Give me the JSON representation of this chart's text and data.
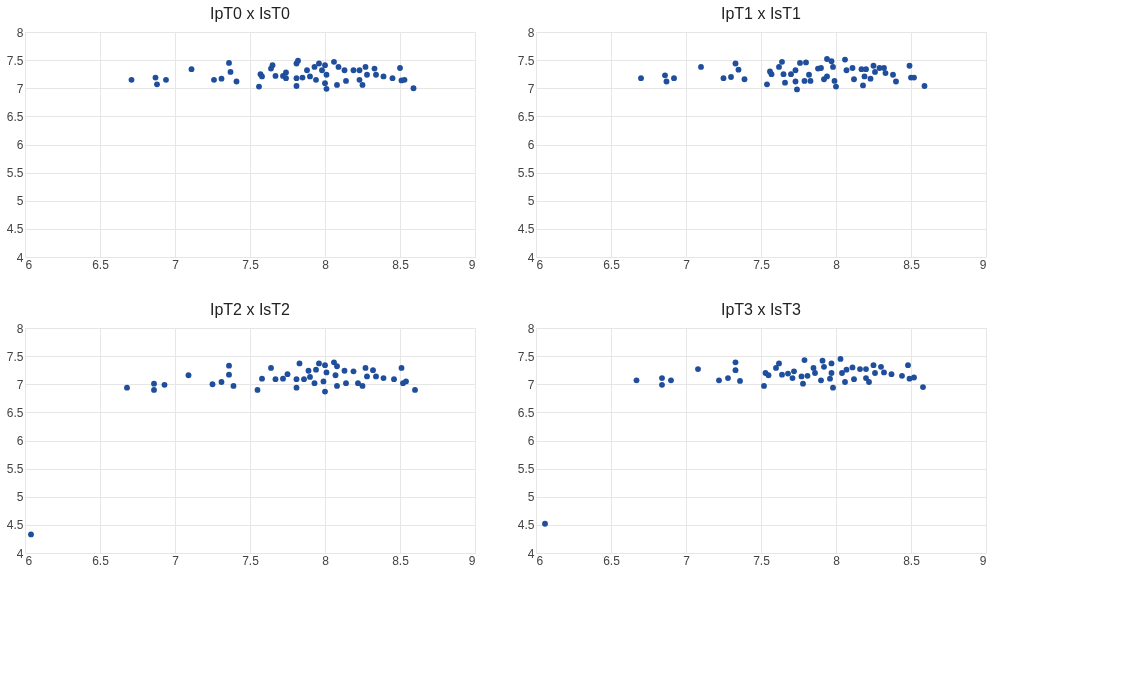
{
  "chart_data": [
    {
      "type": "scatter",
      "title": "IpT0 x IsT0",
      "xlim": [
        6,
        9
      ],
      "ylim": [
        4,
        8
      ],
      "xticks": [
        6,
        6.5,
        7,
        7.5,
        8,
        8.5,
        9
      ],
      "yticks": [
        4,
        4.5,
        5,
        5.5,
        6,
        6.5,
        7,
        7.5,
        8
      ],
      "grid": true,
      "marker": "circle",
      "series": [
        {
          "color": "#1f4e9c",
          "x": [
            6.71,
            6.87,
            6.88,
            6.94,
            7.11,
            7.26,
            7.31,
            7.36,
            7.37,
            7.41,
            7.56,
            7.57,
            7.58,
            7.64,
            7.65,
            7.67,
            7.72,
            7.74,
            7.74,
            7.81,
            7.82,
            7.81,
            7.85,
            7.81,
            7.88,
            7.9,
            7.93,
            7.96,
            7.94,
            7.98,
            8.0,
            8.01,
            8.01,
            8.0,
            8.06,
            8.09,
            8.08,
            8.13,
            8.14,
            8.19,
            8.23,
            8.23,
            8.25,
            8.27,
            8.28,
            8.33,
            8.34,
            8.39,
            8.45,
            8.5,
            8.51,
            8.53,
            8.59
          ],
          "values": [
            7.15,
            7.19,
            7.07,
            7.15,
            7.34,
            7.15,
            7.17,
            7.45,
            7.29,
            7.12,
            7.03,
            7.25,
            7.21,
            7.35,
            7.41,
            7.22,
            7.22,
            7.28,
            7.18,
            7.44,
            7.49,
            7.18,
            7.19,
            7.04,
            7.32,
            7.21,
            7.38,
            7.44,
            7.15,
            7.32,
            7.41,
            7.24,
            6.99,
            7.09,
            7.47,
            7.38,
            7.06,
            7.32,
            7.13,
            7.32,
            7.32,
            7.15,
            7.06,
            7.38,
            7.24,
            7.35,
            7.24,
            7.21,
            7.18,
            7.36,
            7.14,
            7.15,
            7.0
          ]
        }
      ]
    },
    {
      "type": "scatter",
      "title": "IpT1 x IsT1",
      "xlim": [
        6,
        9
      ],
      "ylim": [
        4,
        8
      ],
      "xticks": [
        6,
        6.5,
        7,
        7.5,
        8,
        8.5,
        9
      ],
      "yticks": [
        4,
        4.5,
        5,
        5.5,
        6,
        6.5,
        7,
        7.5,
        8
      ],
      "grid": true,
      "marker": "circle",
      "series": [
        {
          "color": "#1f4e9c",
          "x": [
            6.7,
            6.86,
            6.87,
            6.92,
            7.1,
            7.25,
            7.3,
            7.33,
            7.35,
            7.39,
            7.54,
            7.56,
            7.57,
            7.62,
            7.64,
            7.65,
            7.66,
            7.7,
            7.73,
            7.73,
            7.74,
            7.76,
            7.8,
            7.79,
            7.82,
            7.83,
            7.88,
            7.9,
            7.94,
            7.94,
            7.92,
            7.97,
            7.98,
            8.0,
            7.99,
            8.06,
            8.07,
            8.11,
            8.12,
            8.17,
            8.19,
            8.18,
            8.2,
            8.23,
            8.25,
            8.26,
            8.29,
            8.32,
            8.33,
            8.38,
            8.4,
            8.49,
            8.5,
            8.52,
            8.59
          ],
          "values": [
            7.18,
            7.23,
            7.12,
            7.18,
            7.38,
            7.18,
            7.2,
            7.44,
            7.33,
            7.16,
            7.07,
            7.3,
            7.25,
            7.38,
            7.47,
            7.25,
            7.1,
            7.25,
            7.32,
            7.12,
            6.98,
            7.45,
            7.46,
            7.13,
            7.24,
            7.13,
            7.35,
            7.36,
            7.52,
            7.21,
            7.16,
            7.48,
            7.38,
            7.03,
            7.13,
            7.51,
            7.32,
            7.36,
            7.16,
            7.34,
            7.21,
            7.05,
            7.34,
            7.17,
            7.4,
            7.29,
            7.36,
            7.36,
            7.27,
            7.24,
            7.12,
            7.4,
            7.19,
            7.19,
            7.04
          ]
        }
      ]
    },
    {
      "type": "scatter",
      "title": "IpT2 x IsT2",
      "xlim": [
        6,
        9
      ],
      "ylim": [
        4,
        8
      ],
      "xticks": [
        6,
        6.5,
        7,
        7.5,
        8,
        8.5,
        9
      ],
      "yticks": [
        4,
        4.5,
        5,
        5.5,
        6,
        6.5,
        7,
        7.5,
        8
      ],
      "grid": true,
      "marker": "circle",
      "series": [
        {
          "color": "#1f4e9c",
          "x": [
            6.04,
            6.68,
            6.86,
            6.86,
            6.93,
            7.09,
            7.25,
            7.31,
            7.36,
            7.36,
            7.39,
            7.55,
            7.58,
            7.64,
            7.67,
            7.72,
            7.75,
            7.81,
            7.81,
            7.83,
            7.86,
            7.89,
            7.9,
            7.93,
            7.94,
            7.96,
            8.0,
            7.99,
            8.01,
            8.0,
            8.06,
            8.08,
            8.07,
            8.08,
            8.13,
            8.14,
            8.19,
            8.22,
            8.25,
            8.27,
            8.28,
            8.32,
            8.34,
            8.39,
            8.46,
            8.51,
            8.52,
            8.54,
            8.6
          ],
          "values": [
            4.33,
            6.94,
            7.01,
            6.9,
            6.99,
            7.16,
            7.0,
            7.04,
            7.33,
            7.17,
            6.97,
            6.9,
            7.1,
            7.29,
            7.09,
            7.1,
            7.18,
            7.09,
            6.94,
            7.37,
            7.09,
            7.24,
            7.13,
            7.02,
            7.26,
            7.37,
            7.34,
            7.05,
            7.21,
            6.87,
            7.39,
            7.32,
            7.16,
            6.97,
            7.24,
            7.02,
            7.23,
            7.02,
            6.97,
            7.29,
            7.14,
            7.25,
            7.14,
            7.11,
            7.09,
            7.29,
            7.02,
            7.05,
            6.9
          ]
        }
      ]
    },
    {
      "type": "scatter",
      "title": "IpT3 x IsT3",
      "xlim": [
        6,
        9
      ],
      "ylim": [
        4,
        8
      ],
      "xticks": [
        6,
        6.5,
        7,
        7.5,
        8,
        8.5,
        9
      ],
      "yticks": [
        4,
        4.5,
        5,
        5.5,
        6,
        6.5,
        7,
        7.5,
        8
      ],
      "grid": true,
      "marker": "circle",
      "series": [
        {
          "color": "#1f4e9c",
          "x": [
            6.06,
            6.67,
            6.84,
            6.84,
            6.9,
            7.08,
            7.22,
            7.28,
            7.33,
            7.33,
            7.36,
            7.52,
            7.53,
            7.55,
            7.6,
            7.62,
            7.64,
            7.68,
            7.71,
            7.72,
            7.77,
            7.78,
            7.79,
            7.81,
            7.85,
            7.86,
            7.9,
            7.91,
            7.92,
            7.97,
            7.97,
            7.96,
            7.98,
            8.03,
            8.04,
            8.06,
            8.07,
            8.11,
            8.12,
            8.16,
            8.2,
            8.2,
            8.22,
            8.25,
            8.26,
            8.3,
            8.32,
            8.37,
            8.44,
            8.48,
            8.49,
            8.52,
            8.58
          ],
          "values": [
            4.52,
            7.07,
            7.11,
            6.99,
            7.07,
            7.27,
            7.07,
            7.11,
            7.39,
            7.25,
            7.06,
            6.97,
            7.2,
            7.16,
            7.29,
            7.37,
            7.17,
            7.19,
            7.11,
            7.23,
            7.14,
            7.01,
            7.43,
            7.15,
            7.29,
            7.2,
            7.07,
            7.42,
            7.31,
            7.37,
            7.2,
            7.1,
            6.94,
            7.45,
            7.2,
            7.04,
            7.26,
            7.3,
            7.09,
            7.27,
            7.27,
            7.11,
            7.04,
            7.34,
            7.2,
            7.31,
            7.21,
            7.18,
            7.15,
            7.34,
            7.1,
            7.12,
            6.95
          ]
        }
      ]
    }
  ]
}
